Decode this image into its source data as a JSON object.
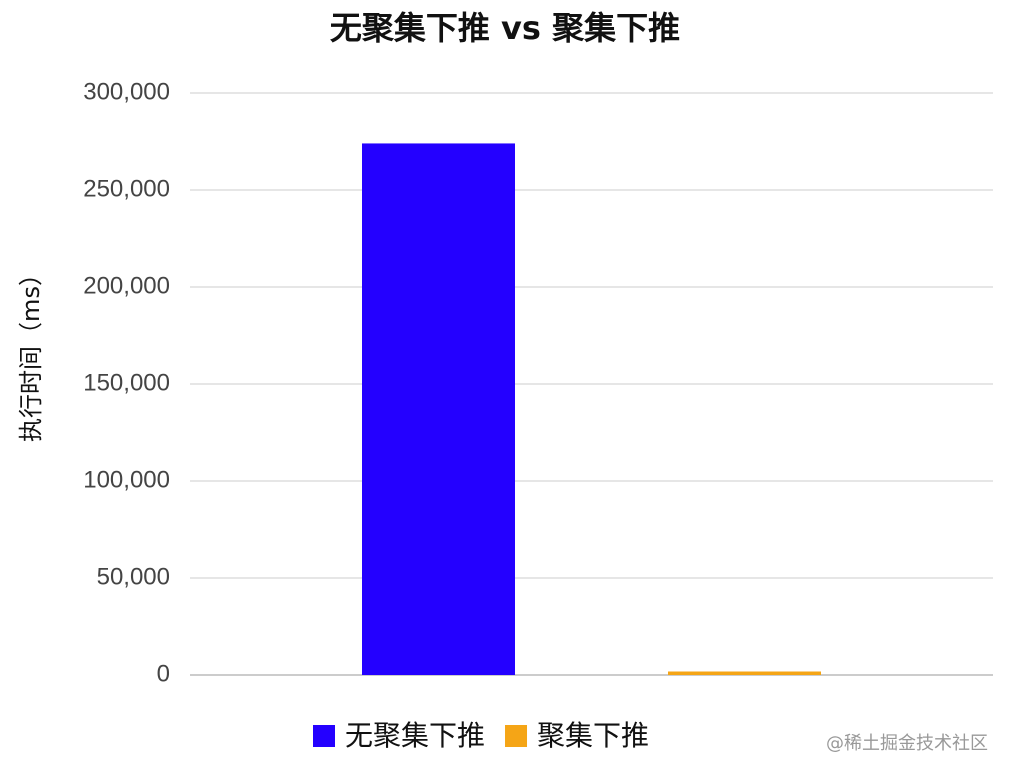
{
  "chart_data": {
    "type": "bar",
    "title": "无聚集下推 vs 聚集下推",
    "y_label": "执行时间（ms）",
    "categories": [
      null
    ],
    "series": [
      {
        "name": "无聚集下推",
        "color": "#2400ff",
        "values": [
          274000
        ]
      },
      {
        "name": "聚集下推",
        "color": "#f5a516",
        "values": [
          1800
        ]
      }
    ],
    "ylim": [
      0,
      300000
    ],
    "yticks": [
      0,
      {
        "value": 50000,
        "label": "50,000"
      },
      {
        "value": 100000,
        "label": "100,000"
      },
      {
        "value": 150000,
        "label": "150,000"
      },
      {
        "value": 200000,
        "label": "200,000"
      },
      {
        "value": 250000,
        "label": "250,000"
      },
      {
        "value": 300000,
        "label": "300,000"
      }
    ],
    "grid": true,
    "legend": "bottom",
    "watermark": "@稀土掘金技术社区"
  }
}
